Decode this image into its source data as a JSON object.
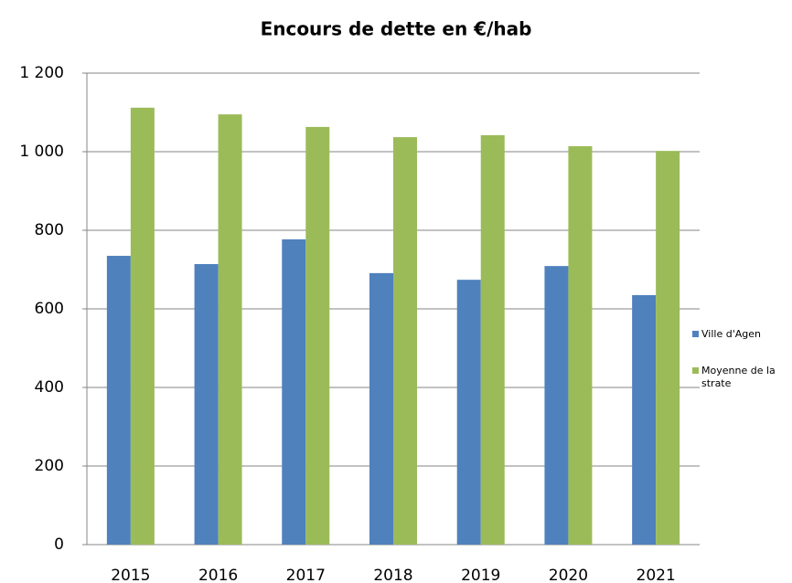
{
  "chart_data": {
    "type": "bar",
    "title": "Encours de dette en €/hab",
    "categories": [
      "2015",
      "2016",
      "2017",
      "2018",
      "2019",
      "2020",
      "2021"
    ],
    "series": [
      {
        "name": "Ville d'Agen",
        "color": "#4f81bd",
        "values": [
          735,
          714,
          777,
          691,
          674,
          709,
          635
        ]
      },
      {
        "name": "Moyenne de la strate",
        "color": "#9bbb59",
        "values": [
          1112,
          1095,
          1063,
          1037,
          1042,
          1014,
          1002
        ]
      }
    ],
    "ylim": [
      0,
      1200
    ],
    "yticks": [
      0,
      200,
      400,
      600,
      800,
      {
        "value": 1000,
        "label": "1 000"
      },
      {
        "value": 1200,
        "label": "1 200"
      }
    ],
    "grid": true,
    "legend": "right"
  }
}
